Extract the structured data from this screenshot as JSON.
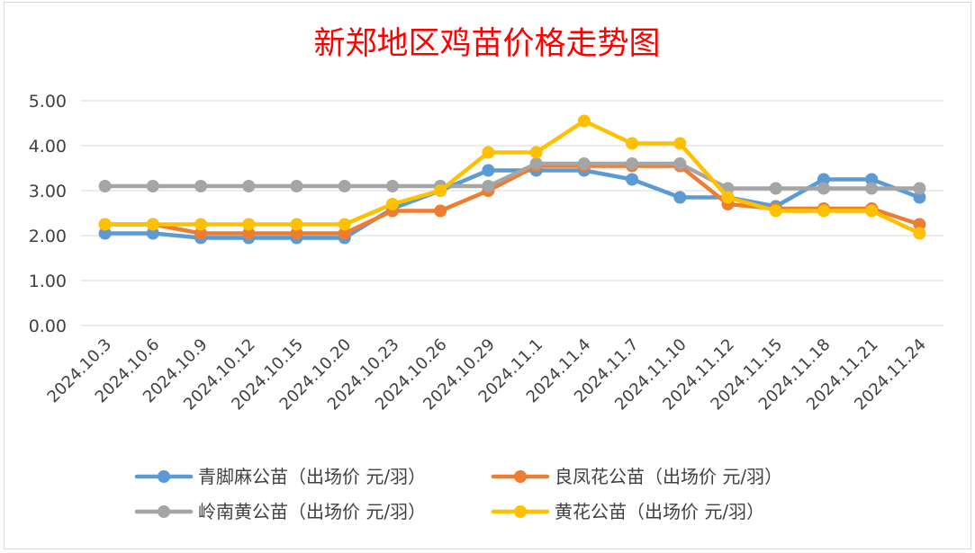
{
  "chart_data": {
    "type": "line",
    "title": "新郑地区鸡苗价格走势图",
    "xlabel": "",
    "ylabel": "",
    "ylim": [
      0,
      5
    ],
    "yticks": [
      "0.00",
      "1.00",
      "2.00",
      "3.00",
      "4.00",
      "5.00"
    ],
    "grid": true,
    "legend_position": "bottom",
    "categories": [
      "2024.10.3",
      "2024.10.6",
      "2024.10.9",
      "2024.10.12",
      "2024.10.15",
      "2024.10.20",
      "2024.10.23",
      "2024.10.26",
      "2024.10.29",
      "2024.11.1",
      "2024.11.4",
      "2024.11.7",
      "2024.11.10",
      "2024.11.12",
      "2024.11.15",
      "2024.11.18",
      "2024.11.21",
      "2024.11.24"
    ],
    "series": [
      {
        "name": "青脚麻公苗（出场价 元/羽）",
        "color": "#5b9bd5",
        "values": [
          2.05,
          2.05,
          1.95,
          1.95,
          1.95,
          1.95,
          2.6,
          3.0,
          3.45,
          3.45,
          3.45,
          3.25,
          2.85,
          2.85,
          2.65,
          3.25,
          3.25,
          2.85
        ]
      },
      {
        "name": "良凤花公苗（出场价 元/羽）",
        "color": "#ed7d31",
        "values": [
          2.25,
          2.25,
          2.05,
          2.05,
          2.05,
          2.05,
          2.55,
          2.55,
          3.0,
          3.55,
          3.55,
          3.55,
          3.55,
          2.7,
          2.6,
          2.6,
          2.6,
          2.25
        ]
      },
      {
        "name": "岭南黄公苗（出场价 元/羽）",
        "color": "#a5a5a5",
        "values": [
          3.1,
          3.1,
          3.1,
          3.1,
          3.1,
          3.1,
          3.1,
          3.1,
          3.1,
          3.6,
          3.6,
          3.6,
          3.6,
          3.05,
          3.05,
          3.05,
          3.05,
          3.05
        ]
      },
      {
        "name": "黄花公苗（出场价 元/羽）",
        "color": "#ffc000",
        "values": [
          2.25,
          2.25,
          2.25,
          2.25,
          2.25,
          2.25,
          2.7,
          3.0,
          3.85,
          3.85,
          4.55,
          4.05,
          4.05,
          2.85,
          2.55,
          2.55,
          2.55,
          2.05
        ]
      }
    ]
  }
}
